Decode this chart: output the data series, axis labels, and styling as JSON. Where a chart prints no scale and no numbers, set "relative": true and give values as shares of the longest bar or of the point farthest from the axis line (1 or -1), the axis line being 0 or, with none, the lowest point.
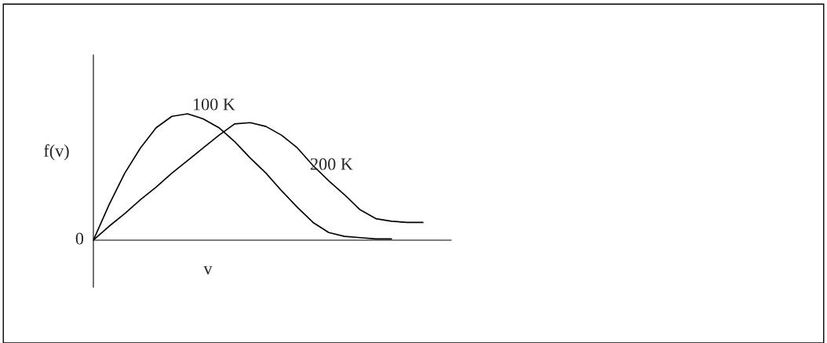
{
  "chart_data": {
    "type": "line",
    "relative": true,
    "xlabel": "v",
    "ylabel": "f(v)",
    "annotations": [
      "0"
    ],
    "categories": [
      null,
      null,
      null,
      null,
      null,
      null,
      null,
      null,
      null,
      null,
      null,
      null,
      null,
      null,
      null,
      null,
      null,
      null,
      null,
      null,
      null,
      null
    ],
    "series": [
      {
        "name": "100 K",
        "color": "#000000",
        "values": [
          0,
          0.28,
          0.53,
          0.73,
          0.89,
          0.98,
          1,
          0.96,
          0.89,
          0.78,
          0.65,
          0.53,
          0.39,
          0.26,
          0.14,
          0.06,
          0.03,
          0.02,
          0.01,
          0.01,
          null,
          null
        ]
      },
      {
        "name": "200 K",
        "color": "#000000",
        "values": [
          0,
          0.11,
          0.21,
          0.32,
          0.42,
          0.53,
          0.63,
          0.73,
          0.83,
          0.92,
          0.93,
          0.9,
          0.83,
          0.73,
          0.59,
          0.47,
          0.36,
          0.24,
          0.17,
          0.15,
          0.14,
          0.14
        ]
      }
    ],
    "legend": false,
    "marker": "none",
    "line_style": "solid"
  }
}
